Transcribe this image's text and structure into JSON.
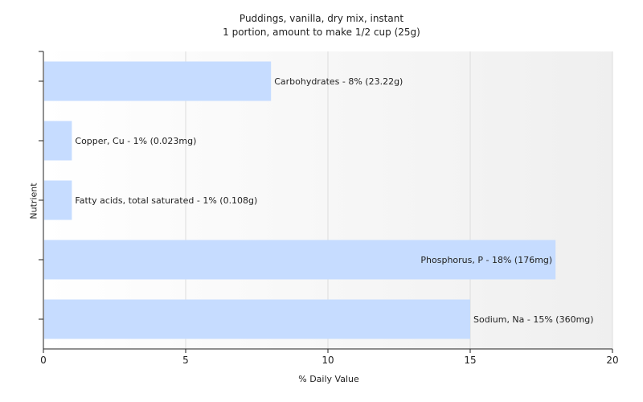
{
  "chart_data": {
    "type": "bar",
    "orientation": "horizontal",
    "title": "Puddings, vanilla, dry mix, instant",
    "subtitle": "1 portion, amount to make 1/2 cup (25g)",
    "xlabel": "% Daily Value",
    "ylabel": "Nutrient",
    "xlim": [
      0,
      20
    ],
    "xticks": [
      0,
      5,
      10,
      15,
      20
    ],
    "grid": true,
    "bar_color": "#c6dcff",
    "categories": [
      "Carbohydrates",
      "Copper, Cu",
      "Fatty acids, total saturated",
      "Phosphorus, P",
      "Sodium, Na"
    ],
    "values": [
      8,
      1,
      1,
      18,
      15
    ],
    "data_labels": [
      "Carbohydrates - 8% (23.22g)",
      "Copper, Cu - 1% (0.023mg)",
      "Fatty acids, total saturated - 1% (0.108g)",
      "Phosphorus, P - 18% (176mg)",
      "Sodium, Na - 15% (360mg)"
    ]
  }
}
